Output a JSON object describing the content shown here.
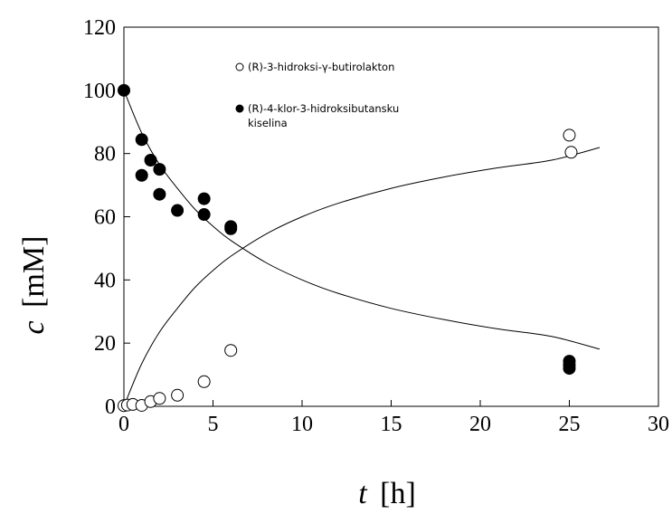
{
  "chart_data": {
    "type": "scatter",
    "xlabel": {
      "symbol": "t",
      "unit": "[h]"
    },
    "ylabel": {
      "symbol": "c",
      "unit": "[mM]"
    },
    "xlim": [
      0,
      30
    ],
    "ylim": [
      0,
      120
    ],
    "xticks": [
      "0",
      "5",
      "10",
      "15",
      "20",
      "25",
      "30"
    ],
    "yticks": [
      "0",
      "20",
      "40",
      "60",
      "80",
      "100",
      "120"
    ],
    "grid": false,
    "legend_position": "top-right inside plot",
    "series": [
      {
        "name": "(R)-3-hidroksi-γ-butirolakton",
        "marker": "open-circle",
        "points": [
          [
            0,
            0.2
          ],
          [
            0.2,
            0.4
          ],
          [
            0.5,
            0.6
          ],
          [
            1,
            0.3
          ],
          [
            1.5,
            1.5
          ],
          [
            2,
            2.5
          ],
          [
            3,
            3.5
          ],
          [
            4.5,
            7.8
          ],
          [
            6,
            17.7
          ],
          [
            25,
            85.8
          ],
          [
            25.1,
            80.4
          ]
        ]
      },
      {
        "name": "(R)-4-klor-3-hidroksibutansku kiselina",
        "legend_lines": [
          "(R)-4-klor-3-hidroksibutansku",
          "kiselina"
        ],
        "marker": "filled-circle",
        "points": [
          [
            0,
            100
          ],
          [
            1,
            84.4
          ],
          [
            1,
            73.1
          ],
          [
            1.5,
            77.9
          ],
          [
            2,
            75
          ],
          [
            2,
            67.1
          ],
          [
            3,
            62
          ],
          [
            4.5,
            65.7
          ],
          [
            4.5,
            60.7
          ],
          [
            6,
            56.9
          ],
          [
            6,
            56.2
          ],
          [
            25,
            14.3
          ],
          [
            25,
            13.1
          ],
          [
            25,
            12
          ]
        ]
      }
    ],
    "fit_curves": [
      {
        "kind": "growth",
        "x": [
          0,
          1,
          2,
          3,
          4,
          5,
          6,
          8,
          10,
          12,
          15,
          18,
          21,
          24,
          26.7
        ],
        "y": [
          0,
          13.5,
          23.5,
          31,
          37.7,
          43,
          47.5,
          54.6,
          60,
          64.2,
          69,
          72.6,
          75.5,
          77.9,
          81.9
        ]
      },
      {
        "kind": "decay",
        "x": [
          0,
          1,
          2,
          3,
          4,
          5,
          6,
          8,
          10,
          12,
          15,
          18,
          21,
          24,
          26.7
        ],
        "y": [
          100,
          86.5,
          76.5,
          69,
          62.3,
          57,
          52.5,
          45.4,
          40,
          35.8,
          31,
          27.4,
          24.5,
          22.1,
          18.1
        ]
      }
    ]
  }
}
